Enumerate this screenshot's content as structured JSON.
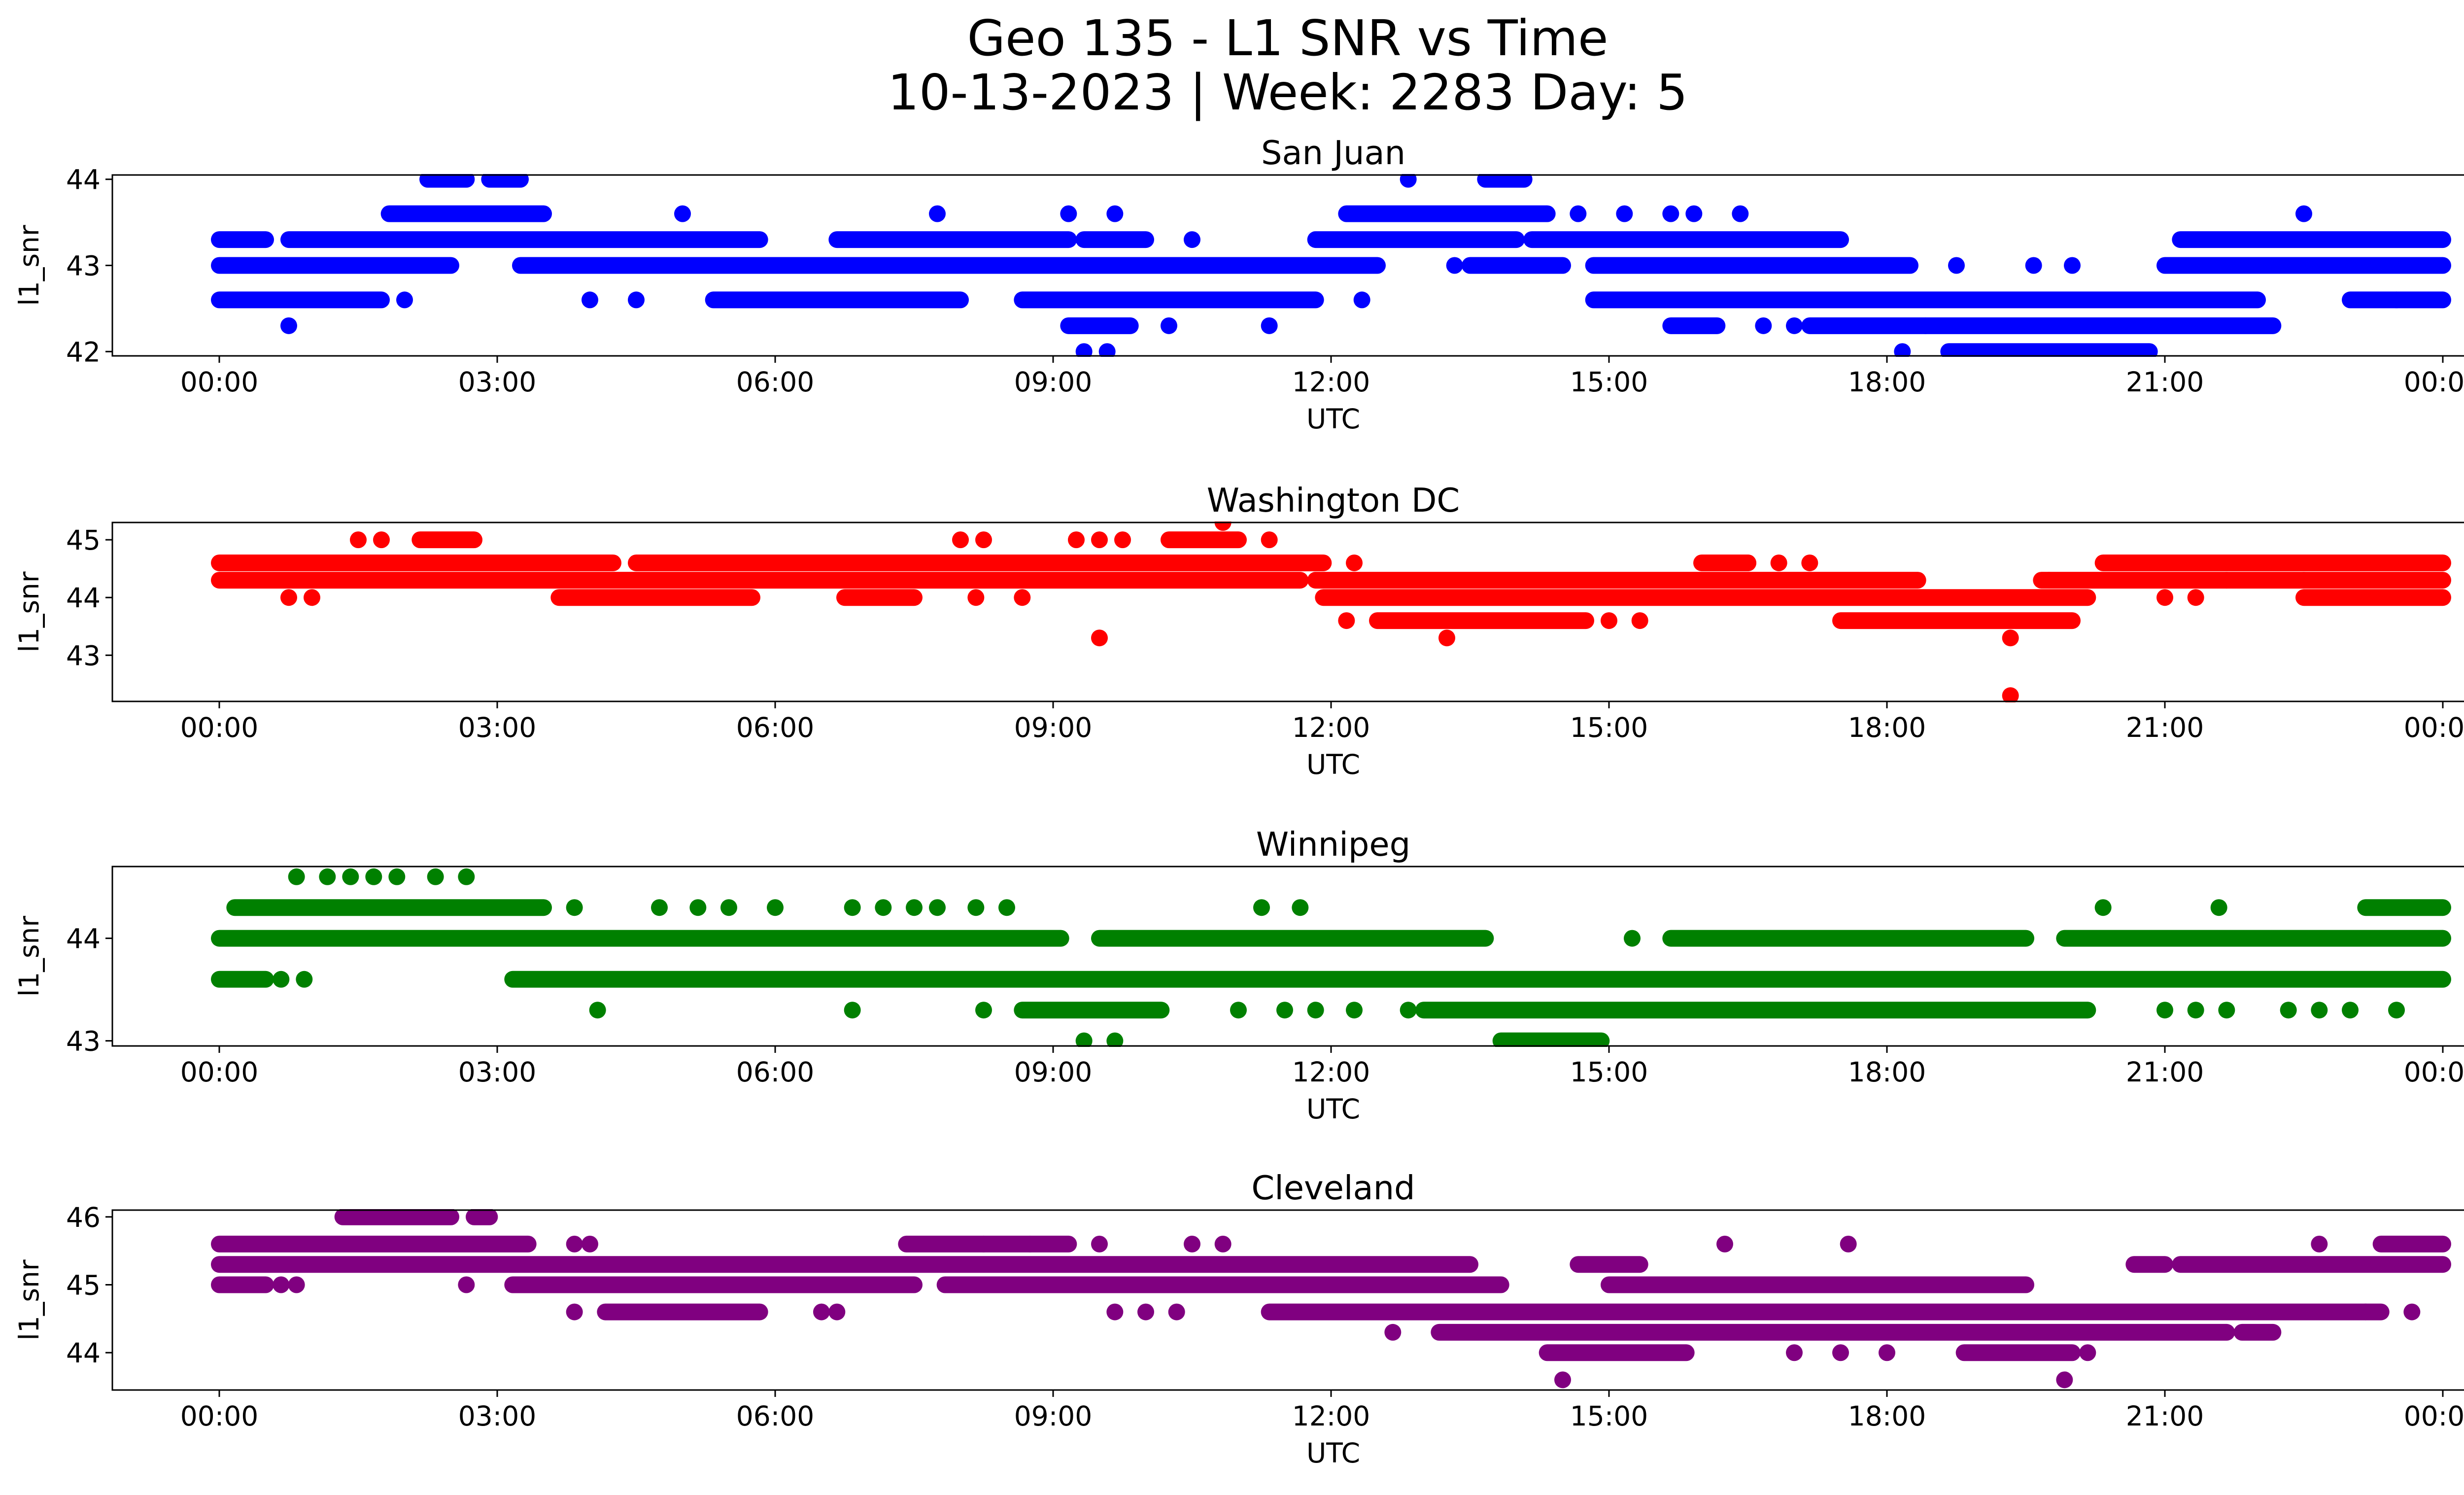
{
  "figure": {
    "title_line1": "Geo 135 - L1 SNR vs Time",
    "title_line2": "10-13-2023 | Week: 2283 Day: 5"
  },
  "chart_data": [
    {
      "type": "scatter",
      "title": "San Juan",
      "xlabel": "UTC",
      "ylabel": "l1_snr",
      "color": "#0000ff",
      "xticks": [
        "00:00",
        "03:00",
        "06:00",
        "09:00",
        "12:00",
        "15:00",
        "18:00",
        "21:00",
        "00:00"
      ],
      "xlim": [
        "00:00",
        "24:00"
      ],
      "ylim": [
        41.95,
        44.05
      ],
      "yticks": [
        42,
        43,
        44
      ],
      "bands": [
        {
          "y": 43.0,
          "segments": [
            [
              "00:00",
              "02:30"
            ],
            [
              "03:15",
              "12:30"
            ],
            [
              "13:30",
              "14:30"
            ],
            [
              "14:50",
              "18:15"
            ],
            [
              "21:00",
              "24:00"
            ]
          ]
        },
        {
          "y": 42.6,
          "segments": [
            [
              "00:00",
              "01:45"
            ],
            [
              "05:20",
              "08:00"
            ],
            [
              "08:40",
              "11:50"
            ],
            [
              "14:50",
              "22:00"
            ],
            [
              "23:00",
              "24:00"
            ]
          ]
        },
        {
          "y": 43.3,
          "segments": [
            [
              "00:00",
              "00:30"
            ],
            [
              "00:45",
              "05:50"
            ],
            [
              "06:40",
              "09:10"
            ],
            [
              "09:20",
              "10:00"
            ],
            [
              "11:50",
              "14:00"
            ],
            [
              "14:10",
              "17:30"
            ],
            [
              "21:10",
              "24:00"
            ]
          ]
        },
        {
          "y": 43.6,
          "segments": [
            [
              "01:50",
              "03:30"
            ],
            [
              "12:10",
              "14:20"
            ]
          ]
        },
        {
          "y": 42.3,
          "segments": [
            [
              "09:10",
              "09:50"
            ],
            [
              "15:40",
              "16:10"
            ],
            [
              "17:10",
              "22:10"
            ]
          ]
        },
        {
          "y": 42.0,
          "segments": [
            [
              "18:40",
              "20:50"
            ]
          ]
        },
        {
          "y": 44.0,
          "segments": [
            [
              "02:15",
              "02:40"
            ],
            [
              "02:55",
              "03:15"
            ],
            [
              "13:40",
              "14:05"
            ]
          ]
        }
      ],
      "points": [
        [
          "00:45",
          42.3
        ],
        [
          "02:00",
          42.6
        ],
        [
          "04:00",
          42.6
        ],
        [
          "04:30",
          42.6
        ],
        [
          "05:00",
          43.6
        ],
        [
          "07:45",
          43.6
        ],
        [
          "09:10",
          43.6
        ],
        [
          "09:40",
          43.6
        ],
        [
          "10:30",
          43.3
        ],
        [
          "10:15",
          42.3
        ],
        [
          "11:20",
          42.3
        ],
        [
          "12:20",
          42.6
        ],
        [
          "12:50",
          44.0
        ],
        [
          "13:20",
          43.0
        ],
        [
          "14:40",
          43.6
        ],
        [
          "15:10",
          43.6
        ],
        [
          "15:40",
          43.6
        ],
        [
          "15:55",
          43.6
        ],
        [
          "16:25",
          43.6
        ],
        [
          "16:40",
          42.3
        ],
        [
          "17:00",
          42.3
        ],
        [
          "18:10",
          42.0
        ],
        [
          "18:25",
          42.3
        ],
        [
          "18:45",
          43.0
        ],
        [
          "19:35",
          43.0
        ],
        [
          "20:00",
          43.0
        ],
        [
          "09:20",
          42.0
        ],
        [
          "09:35",
          42.0
        ],
        [
          "22:30",
          43.6
        ],
        [
          "23:30",
          42.6
        ]
      ]
    },
    {
      "type": "scatter",
      "title": "Washington DC",
      "xlabel": "UTC",
      "ylabel": "l1_snr",
      "color": "#ff0000",
      "xticks": [
        "00:00",
        "03:00",
        "06:00",
        "09:00",
        "12:00",
        "15:00",
        "18:00",
        "21:00",
        "00:00"
      ],
      "xlim": [
        "00:00",
        "24:00"
      ],
      "ylim": [
        42.2,
        45.3
      ],
      "yticks": [
        43,
        44,
        45
      ],
      "bands": [
        {
          "y": 44.6,
          "segments": [
            [
              "00:00",
              "04:15"
            ],
            [
              "04:30",
              "11:55"
            ],
            [
              "16:00",
              "16:30"
            ],
            [
              "20:20",
              "24:00"
            ]
          ]
        },
        {
          "y": 44.3,
          "segments": [
            [
              "00:00",
              "11:40"
            ],
            [
              "11:50",
              "18:20"
            ],
            [
              "19:40",
              "24:00"
            ]
          ]
        },
        {
          "y": 44.0,
          "segments": [
            [
              "03:40",
              "05:45"
            ],
            [
              "06:45",
              "07:30"
            ],
            [
              "11:55",
              "20:10"
            ],
            [
              "22:30",
              "24:00"
            ]
          ]
        },
        {
          "y": 43.6,
          "segments": [
            [
              "12:30",
              "14:45"
            ],
            [
              "17:30",
              "20:00"
            ]
          ]
        },
        {
          "y": 45.0,
          "segments": [
            [
              "02:10",
              "02:45"
            ],
            [
              "10:15",
              "11:00"
            ]
          ]
        }
      ],
      "points": [
        [
          "00:45",
          44.0
        ],
        [
          "01:00",
          44.0
        ],
        [
          "01:30",
          45.0
        ],
        [
          "01:45",
          45.0
        ],
        [
          "08:00",
          45.0
        ],
        [
          "08:15",
          45.0
        ],
        [
          "08:10",
          44.0
        ],
        [
          "08:40",
          44.0
        ],
        [
          "09:15",
          45.0
        ],
        [
          "09:30",
          45.0
        ],
        [
          "09:45",
          45.0
        ],
        [
          "09:30",
          43.3
        ],
        [
          "10:50",
          45.3
        ],
        [
          "11:20",
          45.0
        ],
        [
          "12:15",
          44.6
        ],
        [
          "12:10",
          43.6
        ],
        [
          "13:15",
          43.3
        ],
        [
          "15:00",
          43.6
        ],
        [
          "15:20",
          43.6
        ],
        [
          "16:30",
          44.6
        ],
        [
          "16:50",
          44.6
        ],
        [
          "17:10",
          44.6
        ],
        [
          "19:20",
          43.3
        ],
        [
          "19:20",
          42.3
        ],
        [
          "19:45",
          44.3
        ],
        [
          "21:00",
          44.0
        ],
        [
          "21:20",
          44.0
        ],
        [
          "21:40",
          44.3
        ],
        [
          "22:00",
          44.6
        ],
        [
          "22:10",
          44.6
        ],
        [
          "22:30",
          44.3
        ]
      ]
    },
    {
      "type": "scatter",
      "title": "Winnipeg",
      "xlabel": "UTC",
      "ylabel": "l1_snr",
      "color": "#008000",
      "xticks": [
        "00:00",
        "03:00",
        "06:00",
        "09:00",
        "12:00",
        "15:00",
        "18:00",
        "21:00",
        "00:00"
      ],
      "xlim": [
        "00:00",
        "24:00"
      ],
      "ylim": [
        42.95,
        44.7
      ],
      "yticks": [
        43,
        44
      ],
      "bands": [
        {
          "y": 44.3,
          "segments": [
            [
              "00:10",
              "03:30"
            ],
            [
              "23:10",
              "24:00"
            ]
          ]
        },
        {
          "y": 44.0,
          "segments": [
            [
              "00:00",
              "09:05"
            ],
            [
              "09:30",
              "13:40"
            ],
            [
              "15:40",
              "19:30"
            ],
            [
              "19:55",
              "24:00"
            ]
          ]
        },
        {
          "y": 43.6,
          "segments": [
            [
              "00:00",
              "00:30"
            ],
            [
              "03:10",
              "24:00"
            ]
          ]
        },
        {
          "y": 43.3,
          "segments": [
            [
              "08:40",
              "10:10"
            ],
            [
              "13:00",
              "20:10"
            ]
          ]
        },
        {
          "y": 43.0,
          "segments": [
            [
              "13:50",
              "14:55"
            ]
          ]
        }
      ],
      "points": [
        [
          "00:40",
          43.6
        ],
        [
          "00:55",
          43.6
        ],
        [
          "00:50",
          44.6
        ],
        [
          "01:10",
          44.6
        ],
        [
          "01:25",
          44.6
        ],
        [
          "01:40",
          44.6
        ],
        [
          "01:55",
          44.6
        ],
        [
          "02:20",
          44.6
        ],
        [
          "02:40",
          44.6
        ],
        [
          "03:50",
          44.3
        ],
        [
          "04:05",
          43.3
        ],
        [
          "04:45",
          44.3
        ],
        [
          "05:10",
          44.3
        ],
        [
          "05:30",
          44.3
        ],
        [
          "06:00",
          44.3
        ],
        [
          "06:50",
          44.3
        ],
        [
          "06:50",
          43.3
        ],
        [
          "07:10",
          44.3
        ],
        [
          "07:30",
          44.3
        ],
        [
          "07:45",
          44.3
        ],
        [
          "08:10",
          44.3
        ],
        [
          "08:30",
          44.3
        ],
        [
          "08:15",
          43.3
        ],
        [
          "09:20",
          43.0
        ],
        [
          "09:40",
          43.0
        ],
        [
          "11:15",
          44.3
        ],
        [
          "11:40",
          44.3
        ],
        [
          "11:00",
          43.3
        ],
        [
          "11:30",
          43.3
        ],
        [
          "11:50",
          43.3
        ],
        [
          "12:15",
          43.3
        ],
        [
          "12:50",
          43.3
        ],
        [
          "15:15",
          44.0
        ],
        [
          "20:20",
          44.3
        ],
        [
          "21:00",
          43.3
        ],
        [
          "21:20",
          43.3
        ],
        [
          "21:35",
          44.3
        ],
        [
          "21:40",
          43.3
        ],
        [
          "22:20",
          43.3
        ],
        [
          "22:40",
          43.3
        ],
        [
          "23:00",
          43.3
        ],
        [
          "23:30",
          43.3
        ]
      ]
    },
    {
      "type": "scatter",
      "title": "Cleveland",
      "xlabel": "UTC",
      "ylabel": "l1_snr",
      "color": "#800080",
      "xticks": [
        "00:00",
        "03:00",
        "06:00",
        "09:00",
        "12:00",
        "15:00",
        "18:00",
        "21:00",
        "00:00"
      ],
      "xlim": [
        "00:00",
        "24:00"
      ],
      "ylim": [
        43.45,
        46.1
      ],
      "yticks": [
        44,
        45,
        46
      ],
      "bands": [
        {
          "y": 45.6,
          "segments": [
            [
              "00:00",
              "03:20"
            ],
            [
              "07:25",
              "09:10"
            ],
            [
              "23:20",
              "24:00"
            ]
          ]
        },
        {
          "y": 45.3,
          "segments": [
            [
              "00:00",
              "13:30"
            ],
            [
              "14:40",
              "15:20"
            ],
            [
              "20:40",
              "21:00"
            ],
            [
              "21:10",
              "24:00"
            ]
          ]
        },
        {
          "y": 45.0,
          "segments": [
            [
              "00:00",
              "00:30"
            ],
            [
              "03:10",
              "07:30"
            ],
            [
              "07:50",
              "13:50"
            ],
            [
              "15:00",
              "19:30"
            ]
          ]
        },
        {
          "y": 44.6,
          "segments": [
            [
              "04:10",
              "05:50"
            ],
            [
              "11:20",
              "23:20"
            ]
          ]
        },
        {
          "y": 44.3,
          "segments": [
            [
              "13:10",
              "21:40"
            ],
            [
              "21:50",
              "22:10"
            ]
          ]
        },
        {
          "y": 44.0,
          "segments": [
            [
              "14:20",
              "15:50"
            ],
            [
              "18:50",
              "20:00"
            ]
          ]
        },
        {
          "y": 46.0,
          "segments": [
            [
              "01:20",
              "02:30"
            ],
            [
              "02:45",
              "02:55"
            ]
          ]
        }
      ],
      "points": [
        [
          "00:40",
          45.0
        ],
        [
          "00:50",
          45.0
        ],
        [
          "02:40",
          45.0
        ],
        [
          "03:50",
          44.6
        ],
        [
          "03:50",
          45.6
        ],
        [
          "04:00",
          45.6
        ],
        [
          "06:30",
          44.6
        ],
        [
          "06:40",
          44.6
        ],
        [
          "08:15",
          45.6
        ],
        [
          "08:45",
          45.6
        ],
        [
          "09:30",
          45.6
        ],
        [
          "09:40",
          44.6
        ],
        [
          "10:00",
          44.6
        ],
        [
          "10:20",
          44.6
        ],
        [
          "10:30",
          45.6
        ],
        [
          "10:50",
          45.6
        ],
        [
          "12:40",
          44.3
        ],
        [
          "14:30",
          43.6
        ],
        [
          "16:15",
          45.6
        ],
        [
          "17:35",
          45.6
        ],
        [
          "17:00",
          44.0
        ],
        [
          "17:30",
          44.0
        ],
        [
          "18:00",
          44.0
        ],
        [
          "19:55",
          43.6
        ],
        [
          "20:10",
          44.0
        ],
        [
          "22:40",
          45.6
        ],
        [
          "23:10",
          44.6
        ],
        [
          "23:40",
          44.6
        ]
      ]
    }
  ]
}
